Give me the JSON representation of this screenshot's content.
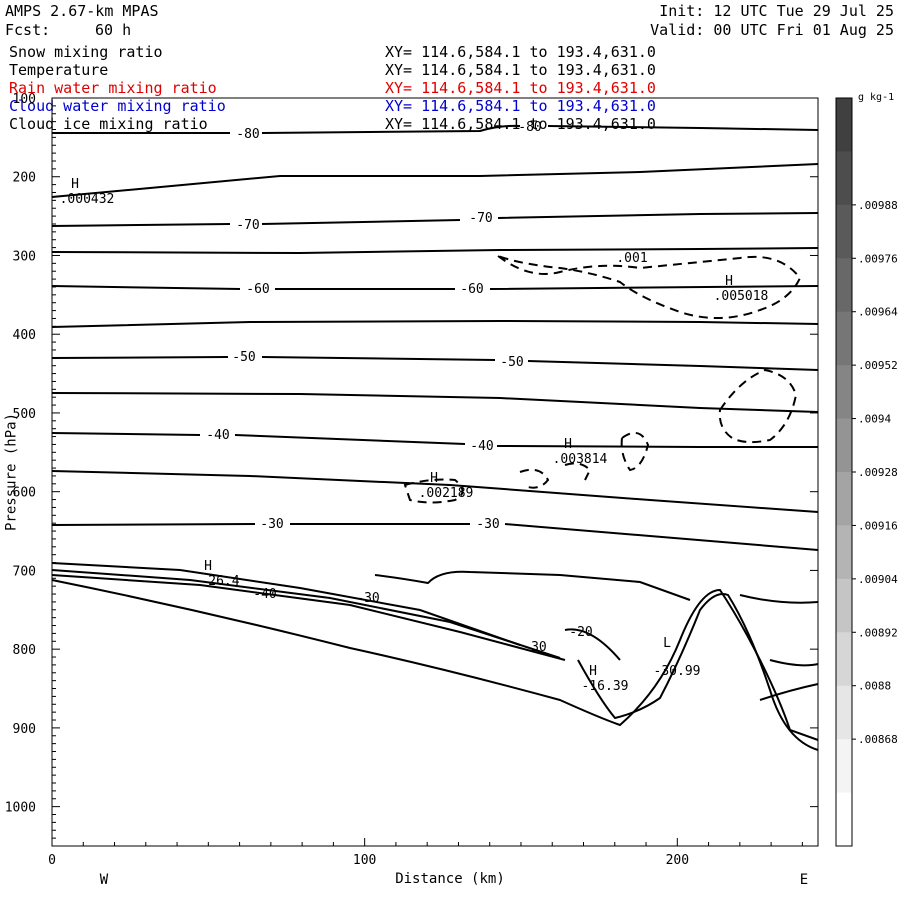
{
  "header": {
    "model": "AMPS 2.67-km MPAS",
    "fcst_label": "Fcst:",
    "fcst_value": "60 h",
    "init": "Init: 12 UTC Tue 29 Jul 25",
    "valid": "Valid: 00 UTC Fri 01 Aug 25"
  },
  "fields": [
    {
      "name": "Snow mixing ratio",
      "xy": "XY= 114.6,584.1 to 193.4,631.0",
      "color": "#000000"
    },
    {
      "name": "Temperature",
      "xy": "XY= 114.6,584.1 to 193.4,631.0",
      "color": "#000000"
    },
    {
      "name": "Rain water mixing ratio",
      "xy": "XY= 114.6,584.1 to 193.4,631.0",
      "color": "#e00000"
    },
    {
      "name": "Cloud water mixing ratio",
      "xy": "XY= 114.6,584.1 to 193.4,631.0",
      "color": "#0000d0"
    },
    {
      "name": "Cloud ice mixing ratio",
      "xy": "XY= 114.6,584.1 to 193.4,631.0",
      "color": "#000000"
    }
  ],
  "chart_data": {
    "type": "contour cross-section",
    "xlabel": "Distance (km)",
    "ylabel": "Pressure (hPa)",
    "x_ticks": [
      "0",
      "100",
      "200"
    ],
    "x_tick_values": [
      0,
      100,
      200
    ],
    "xlim": [
      0,
      245
    ],
    "y_ticks": [
      "100",
      "200",
      "300",
      "400",
      "500",
      "600",
      "700",
      "800",
      "900",
      "1000"
    ],
    "y_tick_values": [
      100,
      200,
      300,
      400,
      500,
      600,
      700,
      800,
      900,
      1000
    ],
    "ylim": [
      100,
      1050
    ],
    "side_labels": {
      "west": "W",
      "east": "E"
    },
    "temperature_contour_labels": [
      "-80",
      "-80",
      "-70",
      "-70",
      "-60",
      "-60",
      "-50",
      "-50",
      "-40",
      "-40",
      "-30",
      "-30",
      "-40",
      "-30",
      "-30",
      "-20",
      "-30.99"
    ],
    "extrema": [
      {
        "type": "H",
        "value": ".000432"
      },
      {
        "type": "H",
        "value": ".005018"
      },
      {
        "type": "H",
        "value": ".003814"
      },
      {
        "type": "H",
        "value": ".002189"
      },
      {
        "type": "H",
        "value": "-26.4"
      },
      {
        "type": "H",
        "value": "-16.39"
      },
      {
        "type": "L",
        "value": "-30.99"
      }
    ],
    "ice_contour_label": ".001",
    "colorbar": {
      "unit": "g kg-1",
      "ticks": [
        ".00988",
        ".00976",
        ".00964",
        ".00952",
        ".0094",
        ".00928",
        ".00916",
        ".00904",
        ".00892",
        ".0088",
        ".00868"
      ],
      "colors": [
        "#404040",
        "#4d4d4d",
        "#5a5a5a",
        "#686868",
        "#767676",
        "#858585",
        "#949494",
        "#a4a4a4",
        "#b4b4b4",
        "#c5c5c5",
        "#d6d6d6",
        "#e6e6e6",
        "#f4f4f4",
        "#ffffff"
      ]
    }
  }
}
